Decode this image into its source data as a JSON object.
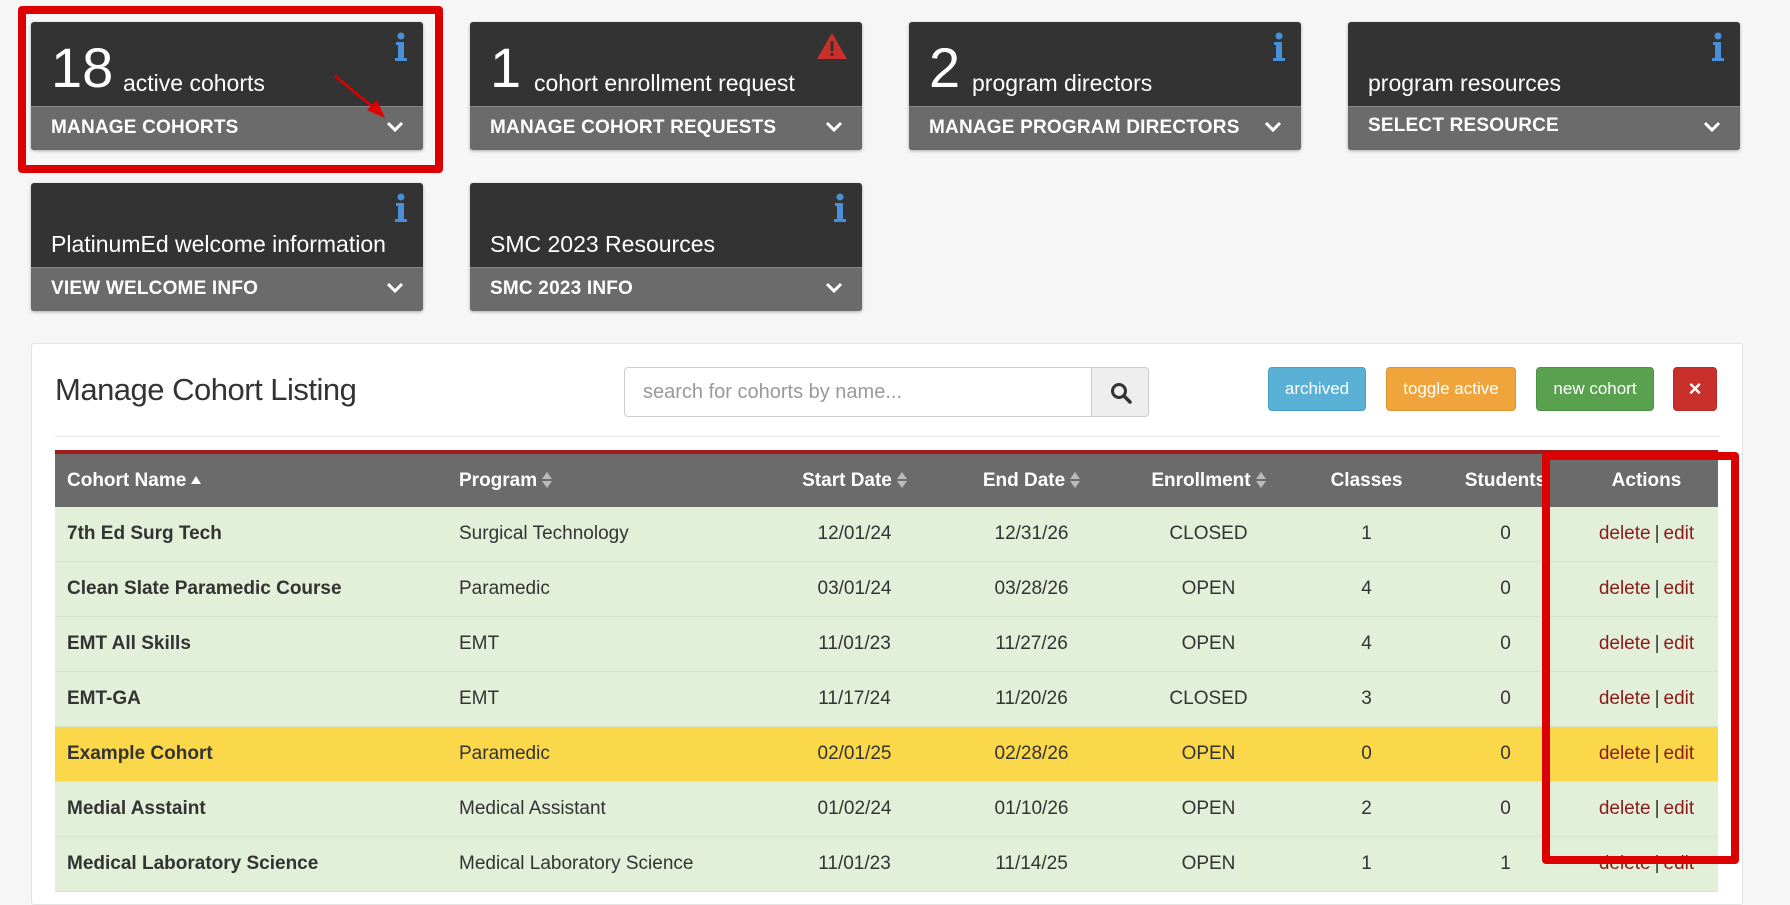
{
  "cards": [
    {
      "count": "18",
      "label": "active cohorts",
      "action": "MANAGE COHORTS",
      "icon": "info-icon"
    },
    {
      "count": "1",
      "label": "cohort enrollment request",
      "action": "MANAGE COHORT REQUESTS",
      "icon": "warning-icon"
    },
    {
      "count": "2",
      "label": "program directors",
      "action": "MANAGE PROGRAM DIRECTORS",
      "icon": "info-icon"
    },
    {
      "count": "",
      "label": "program resources",
      "action": "SELECT RESOURCE",
      "icon": "info-icon"
    },
    {
      "count": "",
      "label": "PlatinumEd welcome information",
      "action": "VIEW WELCOME INFO",
      "icon": "info-icon"
    },
    {
      "count": "",
      "label": "SMC 2023 Resources",
      "action": "SMC 2023 INFO",
      "icon": "info-icon"
    }
  ],
  "panel": {
    "title": "Manage Cohort Listing",
    "search_placeholder": "search for cohorts by name...",
    "buttons": {
      "archived": "archived",
      "toggle": "toggle active",
      "new": "new cohort",
      "close": "×"
    }
  },
  "table": {
    "headers": [
      "Cohort Name",
      "Program",
      "Start Date",
      "End Date",
      "Enrollment",
      "Classes",
      "Students",
      "Actions"
    ],
    "rows": [
      {
        "name": "7th Ed Surg Tech",
        "program": "Surgical Technology",
        "start": "12/01/24",
        "end": "12/31/26",
        "enrollment": "CLOSED",
        "classes": "1",
        "students": "0"
      },
      {
        "name": "Clean Slate Paramedic Course",
        "program": "Paramedic",
        "start": "03/01/24",
        "end": "03/28/26",
        "enrollment": "OPEN",
        "classes": "4",
        "students": "0"
      },
      {
        "name": "EMT All Skills",
        "program": "EMT",
        "start": "11/01/23",
        "end": "11/27/26",
        "enrollment": "OPEN",
        "classes": "4",
        "students": "0"
      },
      {
        "name": "EMT-GA",
        "program": "EMT",
        "start": "11/17/24",
        "end": "11/20/26",
        "enrollment": "CLOSED",
        "classes": "3",
        "students": "0"
      },
      {
        "name": "Example Cohort",
        "program": "Paramedic",
        "start": "02/01/25",
        "end": "02/28/26",
        "enrollment": "OPEN",
        "classes": "0",
        "students": "0"
      },
      {
        "name": "Medial Asstaint",
        "program": "Medical Assistant",
        "start": "01/02/24",
        "end": "01/10/26",
        "enrollment": "OPEN",
        "classes": "2",
        "students": "0"
      },
      {
        "name": "Medical Laboratory Science",
        "program": "Medical Laboratory Science",
        "start": "11/01/23",
        "end": "11/14/25",
        "enrollment": "OPEN",
        "classes": "1",
        "students": "1"
      }
    ],
    "action_delete": "delete",
    "action_sep": "|",
    "action_edit": "edit"
  },
  "colors": {
    "accent_red": "#dd0000",
    "row_green": "#e2efd9",
    "row_selected": "#fad84a",
    "info_blue": "#4a90d9",
    "warning_red": "#c9302c"
  }
}
